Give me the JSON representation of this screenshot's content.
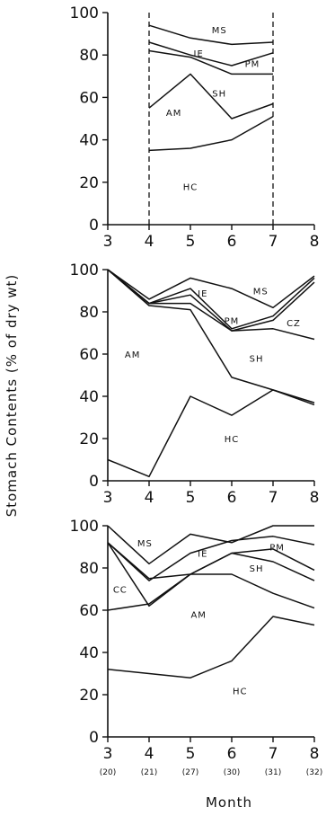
{
  "y_axis_title": "Stomach Contents (% of dry wt)",
  "x_axis_title": "Month",
  "chart_data": [
    {
      "type": "area",
      "stacked": true,
      "xlim": [
        3,
        8
      ],
      "ylim": [
        0,
        100
      ],
      "x_ticks": [
        "3",
        "4",
        "5",
        "6",
        "7",
        "8"
      ],
      "y_ticks": [
        "0",
        "20",
        "40",
        "60",
        "80",
        "100"
      ],
      "dashed_verticals": [
        4,
        7
      ],
      "x": [
        4,
        5,
        6,
        7
      ],
      "boundaries": [
        [
          35,
          36,
          40,
          51
        ],
        [
          55,
          71,
          50,
          57
        ],
        [
          82,
          79,
          71,
          71
        ],
        [
          86,
          80,
          75,
          81
        ],
        [
          94,
          88,
          85,
          86
        ]
      ],
      "region_labels": [
        {
          "text": "HC",
          "x": 5.0,
          "y": 18
        },
        {
          "text": "AM",
          "x": 4.6,
          "y": 53
        },
        {
          "text": "SH",
          "x": 5.7,
          "y": 62
        },
        {
          "text": "PM",
          "x": 6.5,
          "y": 76
        },
        {
          "text": "IE",
          "x": 5.2,
          "y": 81
        },
        {
          "text": "MS",
          "x": 5.7,
          "y": 92
        }
      ]
    },
    {
      "type": "area",
      "stacked": true,
      "xlim": [
        3,
        8
      ],
      "ylim": [
        0,
        100
      ],
      "x_ticks": [
        "3",
        "4",
        "5",
        "6",
        "7",
        "8"
      ],
      "y_ticks": [
        "0",
        "20",
        "40",
        "60",
        "80",
        "100"
      ],
      "x": [
        3,
        4,
        5,
        6,
        7,
        8
      ],
      "boundaries": [
        [
          10,
          2,
          40,
          31,
          43,
          37
        ],
        [
          100,
          83,
          81,
          49,
          43,
          36
        ],
        [
          100,
          84,
          84,
          71,
          72,
          67
        ],
        [
          100,
          84,
          88,
          71,
          76,
          94
        ],
        [
          100,
          84,
          91,
          72,
          78,
          96
        ],
        [
          100,
          86,
          96,
          91,
          82,
          97
        ]
      ],
      "region_labels": [
        {
          "text": "HC",
          "x": 6.0,
          "y": 20
        },
        {
          "text": "AM",
          "x": 3.6,
          "y": 60
        },
        {
          "text": "SH",
          "x": 6.6,
          "y": 58
        },
        {
          "text": "PM",
          "x": 6.0,
          "y": 76
        },
        {
          "text": "CZ",
          "x": 7.5,
          "y": 75
        },
        {
          "text": "IE",
          "x": 5.3,
          "y": 89
        },
        {
          "text": "MS",
          "x": 6.7,
          "y": 90
        }
      ]
    },
    {
      "type": "area",
      "stacked": true,
      "xlim": [
        3,
        8
      ],
      "ylim": [
        0,
        100
      ],
      "x_ticks": [
        "3",
        "4",
        "5",
        "6",
        "7",
        "8"
      ],
      "y_ticks": [
        "0",
        "20",
        "40",
        "60",
        "80",
        "100"
      ],
      "x": [
        3,
        4,
        5,
        6,
        7,
        8
      ],
      "sample_sizes": [
        "(20)",
        "(21)",
        "(27)",
        "(30)",
        "(31)",
        "(32)"
      ],
      "boundaries": [
        [
          32,
          30,
          28,
          36,
          57,
          53
        ],
        [
          60,
          63,
          77,
          77,
          68,
          61
        ],
        [
          92,
          62,
          77,
          87,
          83,
          74
        ],
        [
          92,
          75,
          77,
          87,
          89,
          79
        ],
        [
          92,
          74,
          87,
          93,
          95,
          91
        ],
        [
          100,
          82,
          96,
          92,
          100,
          100
        ]
      ],
      "region_labels": [
        {
          "text": "HC",
          "x": 6.2,
          "y": 22
        },
        {
          "text": "AM",
          "x": 5.2,
          "y": 58
        },
        {
          "text": "CC",
          "x": 3.3,
          "y": 70
        },
        {
          "text": "SH",
          "x": 6.6,
          "y": 80
        },
        {
          "text": "PM",
          "x": 7.1,
          "y": 90
        },
        {
          "text": "IE",
          "x": 5.3,
          "y": 87
        },
        {
          "text": "MS",
          "x": 3.9,
          "y": 92
        }
      ]
    }
  ]
}
